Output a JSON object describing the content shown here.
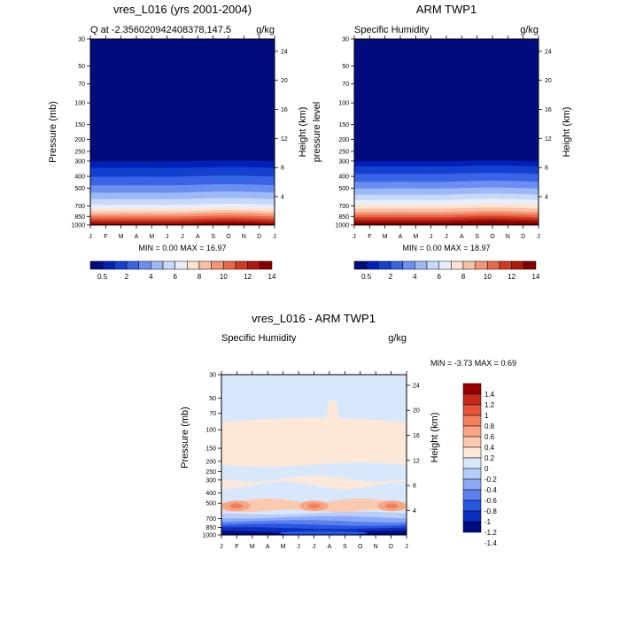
{
  "months": [
    "J",
    "F",
    "M",
    "A",
    "M",
    "J",
    "J",
    "A",
    "S",
    "O",
    "N",
    "D",
    "J"
  ],
  "pressure_ticks": [
    30,
    50,
    70,
    100,
    150,
    200,
    250,
    300,
    400,
    500,
    700,
    850,
    1000
  ],
  "height_ticks": [
    4,
    8,
    12,
    16,
    20,
    24
  ],
  "panels": {
    "model": {
      "title": "vres_L016 (yrs 2001-2004)",
      "left_label": "Q at -2.356020942408378,147.5",
      "right_label": "g/kg",
      "ylabel": "Pressure (mb)",
      "y2label": "Height (km)",
      "minmax": "MIN =   0.00 MAX =  16.97",
      "colorbar_labels": [
        "0.5",
        "2",
        "4",
        "6",
        "8",
        "10",
        "12",
        "14"
      ]
    },
    "obs": {
      "title": "ARM TWP1",
      "left_label": "Specific Humidity",
      "right_label": "g/kg",
      "ylabel": "pressure level",
      "y2label": "Height (km)",
      "minmax": "MIN =   0.00 MAX =  18.97",
      "colorbar_labels": [
        "0.5",
        "2",
        "4",
        "6",
        "8",
        "10",
        "12",
        "14"
      ]
    },
    "diff": {
      "title": "vres_L016 - ARM TWP1",
      "left_label": "Specific Humidity",
      "right_label": "g/kg",
      "ylabel": "Pressure (mb)",
      "y2label": "Height (km)",
      "minmax": "MIN =  -3.73 MAX =   0.69",
      "colorbar_labels": [
        "1.4",
        "1.2",
        "1",
        "0.8",
        "0.6",
        "0.4",
        "0.2",
        "0",
        "-0.2",
        "-0.4",
        "-0.6",
        "-0.8",
        "-1",
        "-1.2",
        "-1.4"
      ]
    }
  },
  "colors": {
    "seq": [
      "#000c7d",
      "#0020b8",
      "#1440d0",
      "#3a64e6",
      "#6a8ff0",
      "#9db8f6",
      "#c7d9fb",
      "#e8eefa",
      "#fbe3d0",
      "#f8c0a4",
      "#f39476",
      "#e8684b",
      "#d33a22",
      "#b0180c",
      "#860000"
    ],
    "div": [
      "#000c7d",
      "#0a2fbf",
      "#2a55e0",
      "#5a80ee",
      "#8aa8f4",
      "#b8cef9",
      "#d7e8fd",
      "#fde8d7",
      "#fbcaae",
      "#f8a684",
      "#f2805f",
      "#e5543a",
      "#c8281a",
      "#990000"
    ]
  },
  "chart_data": [
    {
      "type": "heatmap",
      "title": "vres_L016 (yrs 2001-2004)",
      "xlabel": "",
      "ylabel": "Pressure (mb)",
      "y2label": "Height (km)",
      "x": [
        "J",
        "F",
        "M",
        "A",
        "M",
        "J",
        "J",
        "A",
        "S",
        "O",
        "N",
        "D",
        "J"
      ],
      "y_axis": "pressure (mb), log scale, reversed",
      "ylim": [
        1000,
        30
      ],
      "units": "g/kg",
      "min": 0.0,
      "max": 16.97,
      "surface_values": [
        16.4,
        16.2,
        16.0,
        15.9,
        16.1,
        15.6,
        15.3,
        15.2,
        15.5,
        15.8,
        16.0,
        16.2,
        16.4
      ],
      "contour_levels": [
        0.5,
        1,
        2,
        3,
        4,
        5,
        6,
        7,
        8,
        9,
        10,
        11,
        12,
        13,
        14
      ]
    },
    {
      "type": "heatmap",
      "title": "ARM TWP1",
      "xlabel": "",
      "ylabel": "pressure level",
      "y2label": "Height (km)",
      "x": [
        "J",
        "F",
        "M",
        "A",
        "M",
        "J",
        "J",
        "A",
        "S",
        "O",
        "N",
        "D",
        "J"
      ],
      "y_axis": "pressure (mb), log scale, reversed",
      "ylim": [
        1000,
        30
      ],
      "units": "g/kg",
      "min": 0.0,
      "max": 18.97,
      "surface_values": [
        18.4,
        18.6,
        18.8,
        18.9,
        18.7,
        18.3,
        17.9,
        17.8,
        18.0,
        18.2,
        18.4,
        18.5,
        18.4
      ],
      "contour_levels": [
        0.5,
        1,
        2,
        3,
        4,
        5,
        6,
        7,
        8,
        9,
        10,
        11,
        12,
        13,
        14
      ]
    },
    {
      "type": "heatmap",
      "title": "vres_L016 - ARM TWP1",
      "xlabel": "",
      "ylabel": "Pressure (mb)",
      "y2label": "Height (km)",
      "x": [
        "J",
        "F",
        "M",
        "A",
        "M",
        "J",
        "J",
        "A",
        "S",
        "O",
        "N",
        "D",
        "J"
      ],
      "y_axis": "pressure (mb), log scale, reversed",
      "ylim": [
        1000,
        30
      ],
      "units": "g/kg",
      "min": -3.73,
      "max": 0.69,
      "contour_levels": [
        -1.4,
        -1.2,
        -1,
        -0.8,
        -0.6,
        -0.4,
        -0.2,
        0,
        0.2,
        0.4,
        0.6,
        0.8,
        1,
        1.2,
        1.4
      ]
    }
  ]
}
